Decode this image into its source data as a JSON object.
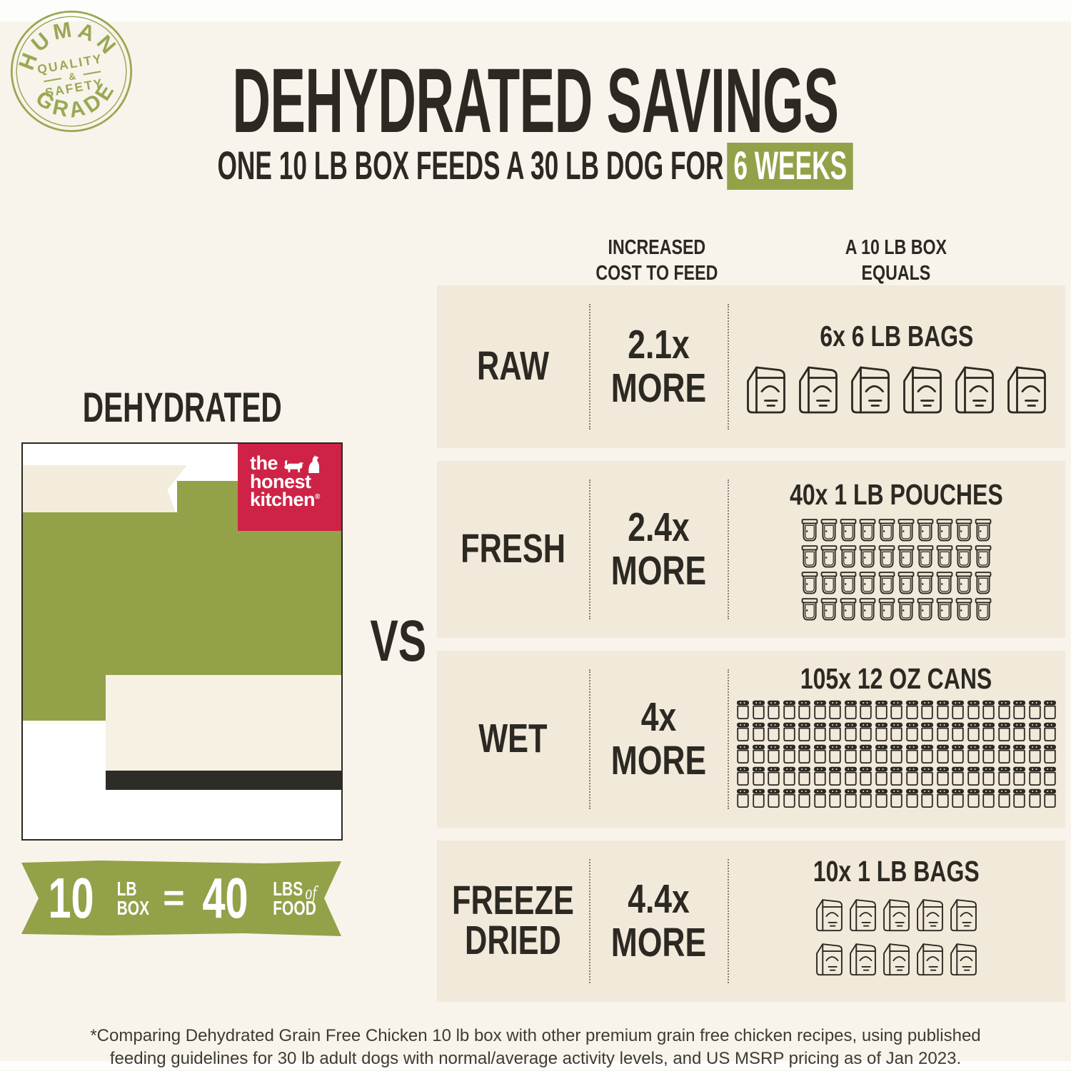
{
  "badge": {
    "top": "HUMAN",
    "bottom": "GRADE",
    "mid1": "QUALITY",
    "amp": "&",
    "mid2": "SAFETY"
  },
  "header": {
    "title": "DEHYDRATED SAVINGS",
    "subtitle_prefix": "ONE 10 LB BOX FEEDS A 30 LB DOG FOR",
    "subtitle_highlight": "6 WEEKS"
  },
  "columns": {
    "col1": [
      "INCREASED",
      "COST TO FEED"
    ],
    "col2": [
      "A 10 LB BOX",
      "EQUALS"
    ]
  },
  "table": {
    "rows": [
      {
        "label": "RAW",
        "multiplier": "2.1x",
        "more": "MORE",
        "equals_label": "6x 6 LB BAGS",
        "icon": "bag",
        "count": 6,
        "per_row": 6
      },
      {
        "label": "FRESH",
        "multiplier": "2.4x",
        "more": "MORE",
        "equals_label": "40x 1 LB POUCHES",
        "icon": "pouch",
        "count": 40,
        "per_row": 10
      },
      {
        "label": "WET",
        "multiplier": "4x",
        "more": "MORE",
        "equals_label": "105x 12 OZ CANS",
        "icon": "can",
        "count": 105,
        "per_row": 21
      },
      {
        "label": "FREEZE DRIED",
        "multiplier": "4.4x",
        "more": "MORE",
        "equals_label": "10x 1 LB BAGS",
        "icon": "bag",
        "count": 10,
        "per_row": 5
      }
    ]
  },
  "vs": "VS",
  "left": {
    "label": "DEHYDRATED",
    "logo": {
      "line1": "the",
      "line2": "honest",
      "line3": "kitchen",
      "reg": "®"
    },
    "banner": {
      "qty1": "10",
      "unit1a": "LB",
      "unit1b": "BOX",
      "equals": "=",
      "qty2": "40",
      "unit2a": "LBS",
      "of": "of",
      "unit2b": "FOOD"
    }
  },
  "footer": {
    "line1": "*Comparing Dehydrated Grain Free Chicken 10 lb box with other premium grain free chicken recipes, using published",
    "line2": "feeding guidelines for 30 lb adult dogs with normal/average activity levels, and US MSRP pricing as of Jan 2023."
  },
  "colors": {
    "green": "#93a149",
    "badge_green": "#9aa854",
    "red": "#ce2346",
    "dark": "#2b2922",
    "page_bg": "#f8f4eb",
    "row_bg": "#f1e9da",
    "highlight_text": "#ffffff",
    "dark_bar": "#2e2c26"
  }
}
